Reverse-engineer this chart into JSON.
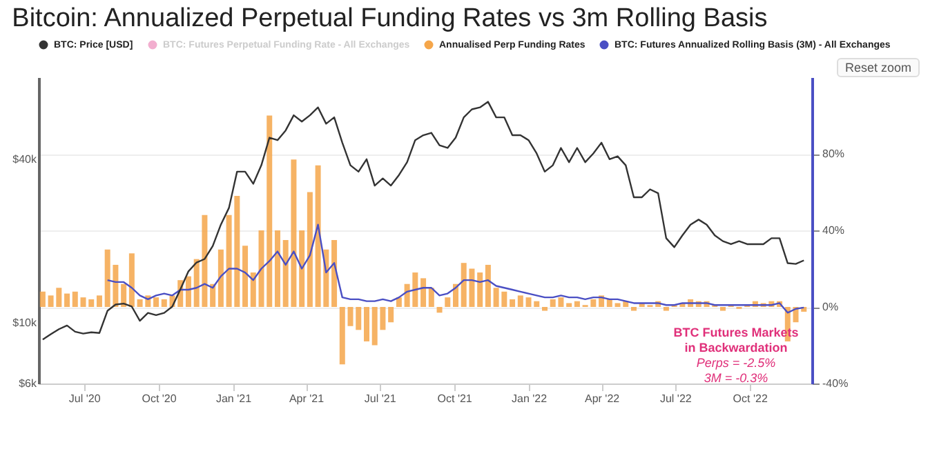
{
  "chart_data": {
    "type": "line",
    "title": "Bitcoin: Annualized Perpetual Funding Rates vs 3m Rolling Basis",
    "x": [
      "2020-05-11",
      "2020-05-21",
      "2020-05-31",
      "2020-06-10",
      "2020-06-20",
      "2020-06-30",
      "2020-07-10",
      "2020-07-20",
      "2020-07-30",
      "2020-08-09",
      "2020-08-19",
      "2020-08-29",
      "2020-09-08",
      "2020-09-18",
      "2020-09-28",
      "2020-10-08",
      "2020-10-18",
      "2020-10-28",
      "2020-11-07",
      "2020-11-17",
      "2020-11-27",
      "2020-12-07",
      "2020-12-17",
      "2020-12-27",
      "2021-01-06",
      "2021-01-16",
      "2021-01-26",
      "2021-02-05",
      "2021-02-15",
      "2021-02-25",
      "2021-03-07",
      "2021-03-17",
      "2021-03-27",
      "2021-04-06",
      "2021-04-16",
      "2021-04-26",
      "2021-05-06",
      "2021-05-16",
      "2021-05-26",
      "2021-06-05",
      "2021-06-15",
      "2021-06-25",
      "2021-07-05",
      "2021-07-15",
      "2021-07-25",
      "2021-08-04",
      "2021-08-14",
      "2021-08-24",
      "2021-09-03",
      "2021-09-13",
      "2021-09-23",
      "2021-10-03",
      "2021-10-13",
      "2021-10-23",
      "2021-11-02",
      "2021-11-12",
      "2021-11-22",
      "2021-12-02",
      "2021-12-12",
      "2021-12-22",
      "2022-01-01",
      "2022-01-11",
      "2022-01-21",
      "2022-01-31",
      "2022-02-10",
      "2022-02-20",
      "2022-03-02",
      "2022-03-12",
      "2022-03-22",
      "2022-04-01",
      "2022-04-11",
      "2022-04-21",
      "2022-05-01",
      "2022-05-11",
      "2022-05-21",
      "2022-05-31",
      "2022-06-10",
      "2022-06-20",
      "2022-06-30",
      "2022-07-10",
      "2022-07-20",
      "2022-07-30",
      "2022-08-09",
      "2022-08-19",
      "2022-08-29",
      "2022-09-08",
      "2022-09-18",
      "2022-09-28",
      "2022-10-08",
      "2022-10-18",
      "2022-10-28",
      "2022-11-07",
      "2022-11-17",
      "2022-11-27",
      "2022-12-07"
    ],
    "series": [
      {
        "name": "BTC: Price [USD]",
        "color": "#333333",
        "values": [
          8700,
          9100,
          9500,
          9800,
          9300,
          9150,
          9250,
          9200,
          11100,
          11700,
          11800,
          11500,
          10200,
          10900,
          10700,
          10900,
          11500,
          13300,
          15500,
          16700,
          17200,
          19200,
          23000,
          26500,
          36000,
          36000,
          32500,
          38000,
          48000,
          47000,
          51000,
          58000,
          55000,
          58000,
          62000,
          54000,
          57000,
          46000,
          38000,
          36000,
          40000,
          32000,
          34000,
          32000,
          35000,
          39000,
          47000,
          49000,
          50000,
          45000,
          44000,
          48000,
          57000,
          61000,
          62000,
          65000,
          57000,
          57000,
          49000,
          49000,
          47000,
          42000,
          36000,
          38000,
          44000,
          39000,
          44000,
          39000,
          42000,
          46000,
          40000,
          41000,
          38000,
          29000,
          29000,
          31000,
          30000,
          20500,
          19000,
          21000,
          23000,
          24000,
          23000,
          21000,
          20000,
          19500,
          20000,
          19500,
          19500,
          19500,
          20500,
          20500,
          16600,
          16500,
          17000
        ]
      },
      {
        "name": "BTC: Futures Perpetual Funding Rate - All Exchanges",
        "axis": "y2",
        "color": "#e0388a",
        "values": [
          null,
          null,
          null,
          null,
          null,
          null,
          null,
          null,
          null,
          null,
          null,
          null,
          null,
          null,
          null,
          null,
          null,
          null,
          null,
          null,
          null,
          null,
          null,
          null,
          null,
          null,
          null,
          null,
          null,
          null,
          null,
          null,
          null,
          null,
          null,
          null,
          null,
          null,
          null,
          null,
          null,
          null,
          null,
          null,
          null,
          null,
          null,
          null,
          null,
          null,
          null,
          null,
          null,
          null,
          null,
          null,
          null,
          null,
          null,
          null,
          null,
          null,
          null,
          null,
          null,
          null,
          null,
          null,
          null,
          null,
          null,
          null,
          null,
          null,
          null,
          null,
          null,
          null,
          null,
          null,
          null,
          null,
          null,
          null,
          null,
          null,
          null,
          null,
          null,
          null,
          null,
          null,
          null,
          null,
          null
        ]
      },
      {
        "name": "Annualised Perp Funding Rates",
        "type": "bar",
        "axis": "y2",
        "color": "#f5a64a",
        "values": [
          8,
          6,
          10,
          7,
          8,
          5,
          4,
          6,
          30,
          22,
          12,
          28,
          4,
          6,
          5,
          4,
          6,
          14,
          16,
          25,
          48,
          12,
          30,
          48,
          58,
          32,
          18,
          40,
          100,
          40,
          35,
          77,
          40,
          60,
          74,
          30,
          35,
          -30,
          -10,
          -12,
          -18,
          -20,
          -12,
          -8,
          5,
          12,
          18,
          15,
          10,
          -3,
          5,
          12,
          23,
          20,
          18,
          22,
          10,
          8,
          4,
          6,
          5,
          3,
          -2,
          4,
          5,
          2,
          3,
          1,
          4,
          6,
          4,
          2,
          3,
          -2,
          2,
          1,
          3,
          -2,
          1,
          2,
          4,
          3,
          3,
          1,
          -2,
          1,
          -1,
          1,
          3,
          2,
          3,
          3,
          -18,
          -8,
          -2.5
        ]
      },
      {
        "name": "BTC: Futures Annualized Rolling Basis (3M) - All Exchanges",
        "axis": "y2",
        "color": "#4a4fc4",
        "values": [
          null,
          null,
          null,
          null,
          null,
          null,
          null,
          null,
          14,
          13,
          13,
          10,
          6,
          4,
          6,
          7,
          6,
          9,
          9,
          10,
          12,
          10,
          16,
          20,
          20,
          18,
          14,
          20,
          24,
          29,
          22,
          29,
          20,
          27,
          43,
          18,
          23,
          5,
          4,
          4,
          3,
          3,
          4,
          3,
          5,
          8,
          9,
          10,
          10,
          6,
          7,
          10,
          14,
          14,
          13,
          14,
          11,
          10,
          9,
          8,
          7,
          6,
          5,
          5,
          6,
          5,
          5,
          4,
          5,
          5,
          4,
          4,
          3,
          2,
          2,
          2,
          2,
          1,
          1,
          2,
          2,
          2,
          2,
          1,
          1,
          1,
          1,
          1,
          1,
          1,
          1,
          2,
          -3,
          -1,
          -0.3
        ]
      }
    ],
    "xlim": [
      "2020-05-06",
      "2022-12-17"
    ],
    "xticks": [
      {
        "value": "2020-07-01",
        "label": "Jul '20"
      },
      {
        "value": "2020-10-01",
        "label": "Oct '20"
      },
      {
        "value": "2021-01-01",
        "label": "Jan '21"
      },
      {
        "value": "2021-04-01",
        "label": "Apr '21"
      },
      {
        "value": "2021-07-01",
        "label": "Jul '21"
      },
      {
        "value": "2021-10-01",
        "label": "Oct '21"
      },
      {
        "value": "2022-01-01",
        "label": "Jan '22"
      },
      {
        "value": "2022-04-01",
        "label": "Apr '22"
      },
      {
        "value": "2022-07-01",
        "label": "Jul '22"
      },
      {
        "value": "2022-10-01",
        "label": "Oct '22"
      }
    ],
    "ylim": [
      6000,
      80000
    ],
    "yticks": [
      {
        "value": 6000,
        "label": "$6k"
      },
      {
        "value": 10000,
        "label": "$10k"
      },
      {
        "value": 40000,
        "label": "$40k"
      }
    ],
    "y2lim": [
      -40,
      120
    ],
    "y2ticks": [
      {
        "value": -40,
        "label": "-40%"
      },
      {
        "value": 0,
        "label": "0%"
      },
      {
        "value": 40,
        "label": "40%"
      },
      {
        "value": 80,
        "label": "80%"
      }
    ],
    "log": "y",
    "grid": "y",
    "legend": "top",
    "annotations": [
      "BTC Futures Markets",
      "in Backwardation",
      "Perps = -2.5%",
      "3M = -0.3%",
      "Reset zoom"
    ]
  }
}
